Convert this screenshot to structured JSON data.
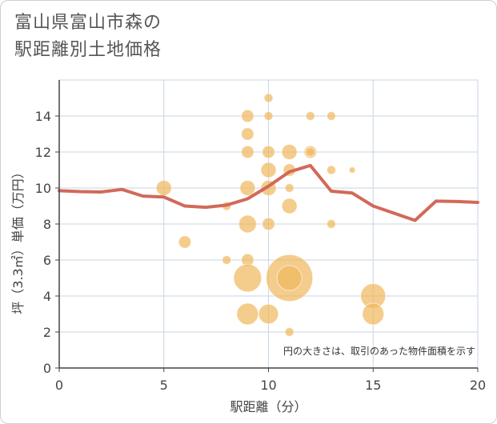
{
  "title_line1": "富山県富山市森の",
  "title_line2": "駅距離別土地価格",
  "chart_data": {
    "type": "scatter",
    "xlabel": "駅距離（分）",
    "ylabel": "坪（3.3㎡）単価（万円）",
    "xlim": [
      0,
      20
    ],
    "ylim": [
      0,
      16
    ],
    "xticks": [
      "0",
      "5",
      "10",
      "15",
      "20"
    ],
    "yticks": [
      "0",
      "2",
      "4",
      "6",
      "8",
      "10",
      "12",
      "14"
    ],
    "x_tick_values": [
      0,
      5,
      10,
      15,
      20
    ],
    "y_tick_values": [
      0,
      2,
      4,
      6,
      8,
      10,
      12,
      14
    ],
    "grid": true,
    "note": "円の大きさは、取引のあった物件面積を示す",
    "colors": {
      "bubble": "#f0b860",
      "line": "#d2695a",
      "grid": "#c8d6e6",
      "axis": "#444444"
    },
    "bubbles": [
      {
        "x": 5,
        "y": 10,
        "size": 3
      },
      {
        "x": 6,
        "y": 7,
        "size": 2
      },
      {
        "x": 8,
        "y": 9,
        "size": 1
      },
      {
        "x": 8,
        "y": 6,
        "size": 1
      },
      {
        "x": 9,
        "y": 14,
        "size": 2
      },
      {
        "x": 9,
        "y": 13,
        "size": 2
      },
      {
        "x": 9,
        "y": 12,
        "size": 2
      },
      {
        "x": 9,
        "y": 10,
        "size": 3
      },
      {
        "x": 9,
        "y": 8,
        "size": 4
      },
      {
        "x": 9,
        "y": 6,
        "size": 2
      },
      {
        "x": 9,
        "y": 5,
        "size": 10
      },
      {
        "x": 9,
        "y": 3,
        "size": 6
      },
      {
        "x": 10,
        "y": 15,
        "size": 1
      },
      {
        "x": 10,
        "y": 14,
        "size": 1
      },
      {
        "x": 10,
        "y": 12,
        "size": 2
      },
      {
        "x": 10,
        "y": 11,
        "size": 3
      },
      {
        "x": 10,
        "y": 10,
        "size": 3
      },
      {
        "x": 10,
        "y": 8,
        "size": 2
      },
      {
        "x": 10,
        "y": 3,
        "size": 5
      },
      {
        "x": 11,
        "y": 12,
        "size": 3
      },
      {
        "x": 11,
        "y": 11,
        "size": 2
      },
      {
        "x": 11,
        "y": 10,
        "size": 1
      },
      {
        "x": 11,
        "y": 9,
        "size": 3
      },
      {
        "x": 11,
        "y": 5,
        "size": 28
      },
      {
        "x": 11,
        "y": 5,
        "size": 8
      },
      {
        "x": 11,
        "y": 2,
        "size": 1
      },
      {
        "x": 12,
        "y": 14,
        "size": 1
      },
      {
        "x": 12,
        "y": 12,
        "size": 2
      },
      {
        "x": 12,
        "y": 12,
        "size": 1
      },
      {
        "x": 13,
        "y": 14,
        "size": 1
      },
      {
        "x": 13,
        "y": 11,
        "size": 1
      },
      {
        "x": 13,
        "y": 8,
        "size": 1
      },
      {
        "x": 14,
        "y": 11,
        "size": 0.5
      },
      {
        "x": 15,
        "y": 4,
        "size": 8
      },
      {
        "x": 15,
        "y": 3,
        "size": 6
      }
    ],
    "line": {
      "x": [
        0,
        1,
        2,
        3,
        4,
        5,
        6,
        7,
        8,
        9,
        10,
        11,
        12,
        13,
        14,
        15,
        16,
        17,
        18,
        19,
        20
      ],
      "y": [
        9.85,
        9.8,
        9.78,
        9.92,
        9.55,
        9.5,
        9.0,
        8.93,
        9.05,
        9.4,
        10.1,
        10.9,
        11.25,
        9.82,
        9.72,
        9.0,
        8.6,
        8.2,
        9.27,
        9.25,
        9.2
      ]
    }
  }
}
